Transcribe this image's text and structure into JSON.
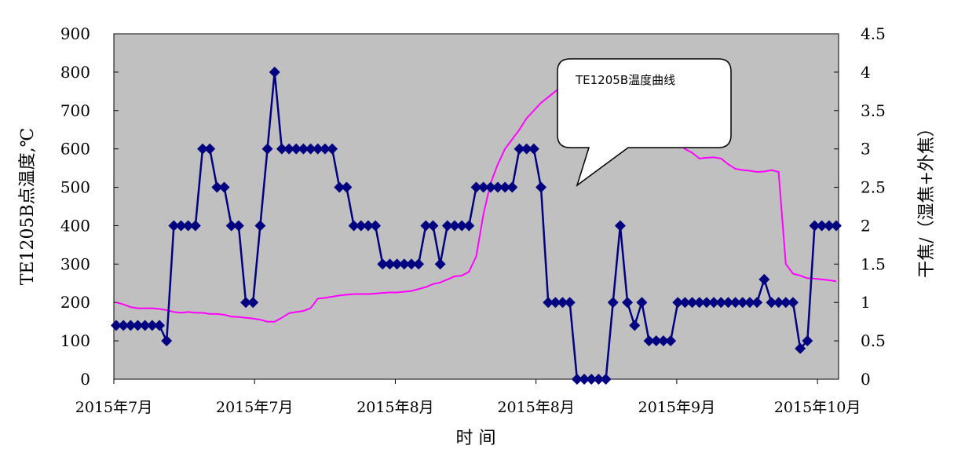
{
  "chart_data": {
    "type": "line",
    "xlabel": "时 间",
    "ylabel": "TE1205B点温度,℃",
    "y2label": "干焦/（湿焦+外焦）",
    "ylim": [
      0,
      900
    ],
    "y2lim": [
      0,
      4.5
    ],
    "yticks": [
      "0",
      "100",
      "200",
      "300",
      "400",
      "500",
      "600",
      "700",
      "800",
      "900"
    ],
    "y2ticks": [
      "0",
      "0.5",
      "1",
      "1.5",
      "2",
      "2.5",
      "3",
      "3.5",
      "4",
      "4.5"
    ],
    "xtick_labels": [
      "2015年7月",
      "2015年7月",
      "2015年8月",
      "2015年8月",
      "2015年9月",
      "2015年10月"
    ],
    "x_count": 101,
    "grid": false,
    "colors": {
      "plot_bg": "#c0c0c0",
      "ratio_series": "#000080",
      "temp_series": "#ff00ff"
    },
    "annotation": "TE1205B温度曲线",
    "series": [
      {
        "axis": "right",
        "marker": "diamond",
        "values": [
          0.7,
          0.7,
          0.7,
          0.7,
          0.7,
          0.7,
          0.7,
          0.5,
          2,
          2,
          2,
          2,
          3,
          3,
          2.5,
          2.5,
          2,
          2,
          1,
          1,
          2,
          3,
          4,
          3,
          3,
          3,
          3,
          3,
          3,
          3,
          3,
          2.5,
          2.5,
          2,
          2,
          2,
          2,
          1.5,
          1.5,
          1.5,
          1.5,
          1.5,
          1.5,
          2,
          2,
          1.5,
          2,
          2,
          2,
          2,
          2.5,
          2.5,
          2.5,
          2.5,
          2.5,
          2.5,
          3,
          3,
          3,
          2.5,
          1,
          1,
          1,
          1,
          0,
          0,
          0,
          0,
          0,
          1,
          2,
          1,
          0.7,
          1,
          0.5,
          0.5,
          0.5,
          0.5,
          1,
          1,
          1,
          1,
          1,
          1,
          1,
          1,
          1,
          1,
          1,
          1,
          1.3,
          1,
          1,
          1,
          1,
          0.4,
          0.5,
          2,
          2,
          2,
          2
        ]
      },
      {
        "axis": "left",
        "marker": "none",
        "values": [
          200,
          195,
          188,
          185,
          185,
          185,
          183,
          180,
          175,
          173,
          175,
          173,
          173,
          170,
          170,
          168,
          163,
          162,
          160,
          158,
          155,
          150,
          150,
          160,
          172,
          175,
          178,
          185,
          210,
          212,
          215,
          218,
          220,
          222,
          222,
          222,
          223,
          225,
          226,
          226,
          228,
          230,
          235,
          240,
          248,
          252,
          260,
          268,
          270,
          280,
          320,
          430,
          510,
          560,
          600,
          625,
          650,
          680,
          700,
          720,
          735,
          750,
          765,
          775,
          782,
          790,
          792,
          780,
          750,
          725,
          708,
          705,
          700,
          680,
          675,
          670,
          668,
          650,
          615,
          600,
          590,
          575,
          577,
          578,
          575,
          560,
          548,
          545,
          543,
          540,
          541,
          545,
          540,
          300,
          275,
          270,
          263,
          262,
          260,
          258,
          255
        ]
      }
    ]
  }
}
